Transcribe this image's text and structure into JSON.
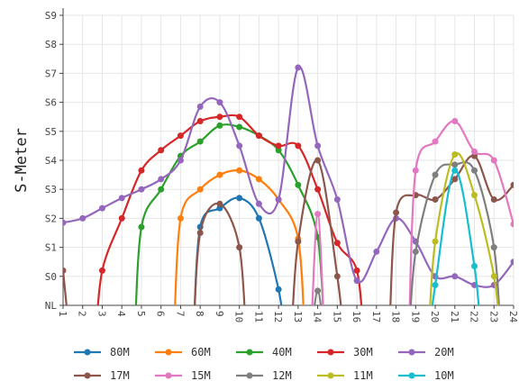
{
  "chart_data": {
    "type": "line",
    "title": "",
    "xlabel": "",
    "ylabel": "S-Meter",
    "x": [
      1,
      2,
      3,
      4,
      5,
      6,
      7,
      8,
      9,
      10,
      11,
      12,
      13,
      14,
      15,
      16,
      17,
      18,
      19,
      20,
      21,
      22,
      23,
      24
    ],
    "xlim": [
      1,
      24
    ],
    "ylim": [
      0,
      9
    ],
    "ytick_labels": [
      "NL",
      "S0",
      "S1",
      "S2",
      "S3",
      "S4",
      "S5",
      "S6",
      "S7",
      "S8",
      "S9"
    ],
    "grid": true,
    "legend_position": "bottom",
    "series": [
      {
        "name": "80M",
        "color": "#1f77b4",
        "values": [
          null,
          null,
          null,
          null,
          null,
          null,
          null,
          2.7,
          3.35,
          3.7,
          3.0,
          0.55,
          null,
          null,
          null,
          null,
          null,
          null,
          null,
          null,
          null,
          null,
          null,
          null
        ]
      },
      {
        "name": "60M",
        "color": "#ff7f0e",
        "values": [
          null,
          null,
          null,
          null,
          null,
          null,
          3.0,
          4.0,
          4.5,
          4.65,
          4.35,
          3.65,
          2.3,
          null,
          null,
          null,
          null,
          null,
          null,
          null,
          null,
          null,
          null,
          null
        ]
      },
      {
        "name": "40M",
        "color": "#2ca02c",
        "values": [
          null,
          null,
          null,
          null,
          2.7,
          4.0,
          5.15,
          5.65,
          6.2,
          6.15,
          5.85,
          5.35,
          4.15,
          2.35,
          null,
          null,
          null,
          null,
          null,
          null,
          null,
          null,
          null,
          null
        ]
      },
      {
        "name": "30M",
        "color": "#d62728",
        "values": [
          null,
          null,
          1.2,
          3.0,
          4.65,
          5.35,
          5.85,
          6.35,
          6.5,
          6.5,
          5.85,
          5.5,
          5.5,
          4.0,
          2.15,
          1.2,
          null,
          null,
          null,
          null,
          null,
          null,
          null,
          null
        ]
      },
      {
        "name": "20M",
        "color": "#9467bd",
        "values": [
          2.85,
          3.0,
          3.35,
          3.7,
          4.0,
          4.35,
          5.0,
          6.85,
          7.0,
          5.5,
          3.5,
          3.65,
          8.2,
          5.5,
          3.65,
          0.85,
          1.85,
          3.0,
          2.2,
          1.0,
          1.0,
          0.7,
          0.7,
          1.5
        ]
      },
      {
        "name": "17M",
        "color": "#8c564b",
        "values": [
          1.2,
          null,
          null,
          null,
          null,
          null,
          null,
          2.5,
          3.5,
          2.0,
          null,
          null,
          2.2,
          5.0,
          1.0,
          null,
          null,
          3.2,
          3.8,
          3.65,
          4.35,
          5.15,
          3.65,
          4.15
        ]
      },
      {
        "name": "15M",
        "color": "#e377c2",
        "values": [
          null,
          null,
          null,
          null,
          null,
          null,
          null,
          null,
          null,
          null,
          null,
          null,
          null,
          3.15,
          null,
          null,
          null,
          null,
          4.65,
          5.65,
          6.35,
          5.3,
          5.0,
          2.8
        ]
      },
      {
        "name": "12M",
        "color": "#7f7f7f",
        "values": [
          null,
          null,
          null,
          null,
          null,
          null,
          null,
          null,
          null,
          null,
          null,
          null,
          null,
          0.5,
          null,
          null,
          null,
          null,
          1.85,
          4.5,
          4.85,
          4.65,
          2.0,
          null
        ]
      },
      {
        "name": "11M",
        "color": "#bcbd22",
        "values": [
          null,
          null,
          null,
          null,
          null,
          null,
          null,
          null,
          null,
          null,
          null,
          null,
          null,
          null,
          null,
          null,
          null,
          null,
          null,
          2.2,
          5.2,
          3.8,
          1.0,
          null
        ]
      },
      {
        "name": "10M",
        "color": "#17becf",
        "values": [
          null,
          null,
          null,
          null,
          null,
          null,
          null,
          null,
          null,
          null,
          null,
          null,
          null,
          null,
          null,
          null,
          null,
          null,
          null,
          0.7,
          4.65,
          1.35,
          null,
          null
        ]
      }
    ]
  }
}
